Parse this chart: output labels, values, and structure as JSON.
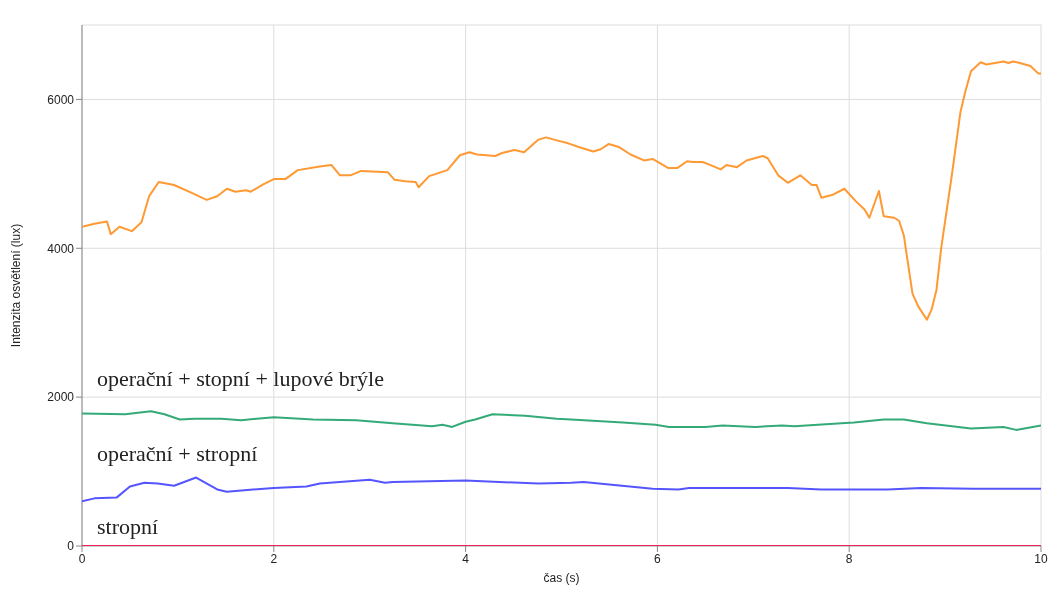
{
  "chart_data": {
    "type": "line",
    "xlabel": "čas (s)",
    "ylabel": "Intenzita osvětlení (lux)",
    "xlim": [
      0,
      10
    ],
    "xticks": [
      0,
      2,
      4,
      6,
      8,
      10
    ],
    "ylim": [
      0,
      7000
    ],
    "yticks": [
      0,
      2000,
      4000,
      6000
    ],
    "grid": true,
    "marker": "none",
    "line_style": "solid",
    "series": [
      {
        "color": "#ff9933",
        "x": [
          0,
          0.13,
          0.26,
          0.3,
          0.39,
          0.52,
          0.62,
          0.7,
          0.8,
          0.96,
          1.15,
          1.3,
          1.41,
          1.51,
          1.6,
          1.71,
          1.76,
          1.89,
          2.0,
          2.12,
          2.25,
          2.48,
          2.6,
          2.69,
          2.8,
          2.91,
          3.19,
          3.26,
          3.37,
          3.48,
          3.51,
          3.62,
          3.81,
          3.94,
          4.04,
          4.12,
          4.31,
          4.38,
          4.51,
          4.61,
          4.76,
          4.84,
          4.95,
          5.07,
          5.18,
          5.33,
          5.41,
          5.49,
          5.6,
          5.72,
          5.86,
          5.95,
          6.11,
          6.21,
          6.31,
          6.37,
          6.47,
          6.53,
          6.66,
          6.72,
          6.83,
          6.93,
          7.1,
          7.15,
          7.26,
          7.36,
          7.49,
          7.61,
          7.66,
          7.71,
          7.83,
          7.95,
          8.07,
          8.16,
          8.21,
          8.31,
          8.36,
          8.47,
          8.52,
          8.57,
          8.66,
          8.72,
          8.81,
          8.86,
          8.91,
          8.96,
          9.07,
          9.16,
          9.21,
          9.27,
          9.37,
          9.43,
          9.61,
          9.66,
          9.71,
          9.78,
          9.89,
          9.97,
          10
        ],
        "values": [
          4290,
          4330,
          4360,
          4190,
          4290,
          4230,
          4350,
          4700,
          4890,
          4850,
          4740,
          4650,
          4700,
          4800,
          4760,
          4780,
          4760,
          4860,
          4930,
          4930,
          5050,
          5100,
          5120,
          4980,
          4980,
          5040,
          5020,
          4920,
          4900,
          4890,
          4820,
          4970,
          5050,
          5250,
          5290,
          5260,
          5240,
          5280,
          5320,
          5290,
          5460,
          5490,
          5450,
          5410,
          5360,
          5300,
          5330,
          5400,
          5360,
          5260,
          5180,
          5200,
          5080,
          5080,
          5170,
          5160,
          5160,
          5130,
          5060,
          5120,
          5090,
          5180,
          5240,
          5210,
          4980,
          4880,
          4980,
          4850,
          4850,
          4680,
          4720,
          4800,
          4630,
          4520,
          4410,
          4770,
          4430,
          4410,
          4370,
          4170,
          3390,
          3220,
          3040,
          3180,
          3440,
          4010,
          4980,
          5830,
          6100,
          6380,
          6500,
          6470,
          6510,
          6490,
          6510,
          6490,
          6450,
          6350,
          6350
        ]
      },
      {
        "name": "operační + stopní + lupové brýle",
        "color": "#33aa77",
        "x": [
          0,
          0.45,
          0.72,
          0.86,
          1.02,
          1.17,
          1.45,
          1.66,
          2.0,
          2.41,
          2.86,
          3.24,
          3.65,
          3.76,
          3.86,
          4.0,
          4.1,
          4.28,
          4.62,
          4.95,
          5.1,
          5.64,
          5.98,
          6.12,
          6.5,
          6.68,
          7.02,
          7.3,
          7.43,
          7.92,
          8.05,
          8.36,
          8.57,
          8.81,
          9.27,
          9.61,
          9.74,
          10
        ],
        "values": [
          1780,
          1770,
          1810,
          1770,
          1700,
          1710,
          1710,
          1690,
          1730,
          1700,
          1690,
          1650,
          1610,
          1630,
          1600,
          1670,
          1700,
          1770,
          1750,
          1710,
          1700,
          1660,
          1630,
          1600,
          1600,
          1620,
          1600,
          1620,
          1610,
          1650,
          1660,
          1700,
          1700,
          1650,
          1580,
          1600,
          1560,
          1620
        ]
      },
      {
        "name": "operační + stropní",
        "color": "#5555ff",
        "x": [
          0,
          0.13,
          0.36,
          0.5,
          0.65,
          0.79,
          0.96,
          1.19,
          1.41,
          1.51,
          2.0,
          2.34,
          2.48,
          3.0,
          3.16,
          3.24,
          4.0,
          4.35,
          4.76,
          5.1,
          5.23,
          5.95,
          6.22,
          6.33,
          7.36,
          7.71,
          8.4,
          8.75,
          9.3,
          10
        ],
        "values": [
          600,
          640,
          650,
          800,
          850,
          840,
          810,
          920,
          760,
          730,
          780,
          800,
          840,
          890,
          850,
          860,
          880,
          860,
          840,
          850,
          860,
          770,
          760,
          780,
          780,
          760,
          760,
          780,
          770,
          770
        ]
      },
      {
        "name": "stropní",
        "color": "#ee2255",
        "x": [
          0,
          10
        ],
        "values": [
          0,
          0
        ]
      }
    ]
  }
}
